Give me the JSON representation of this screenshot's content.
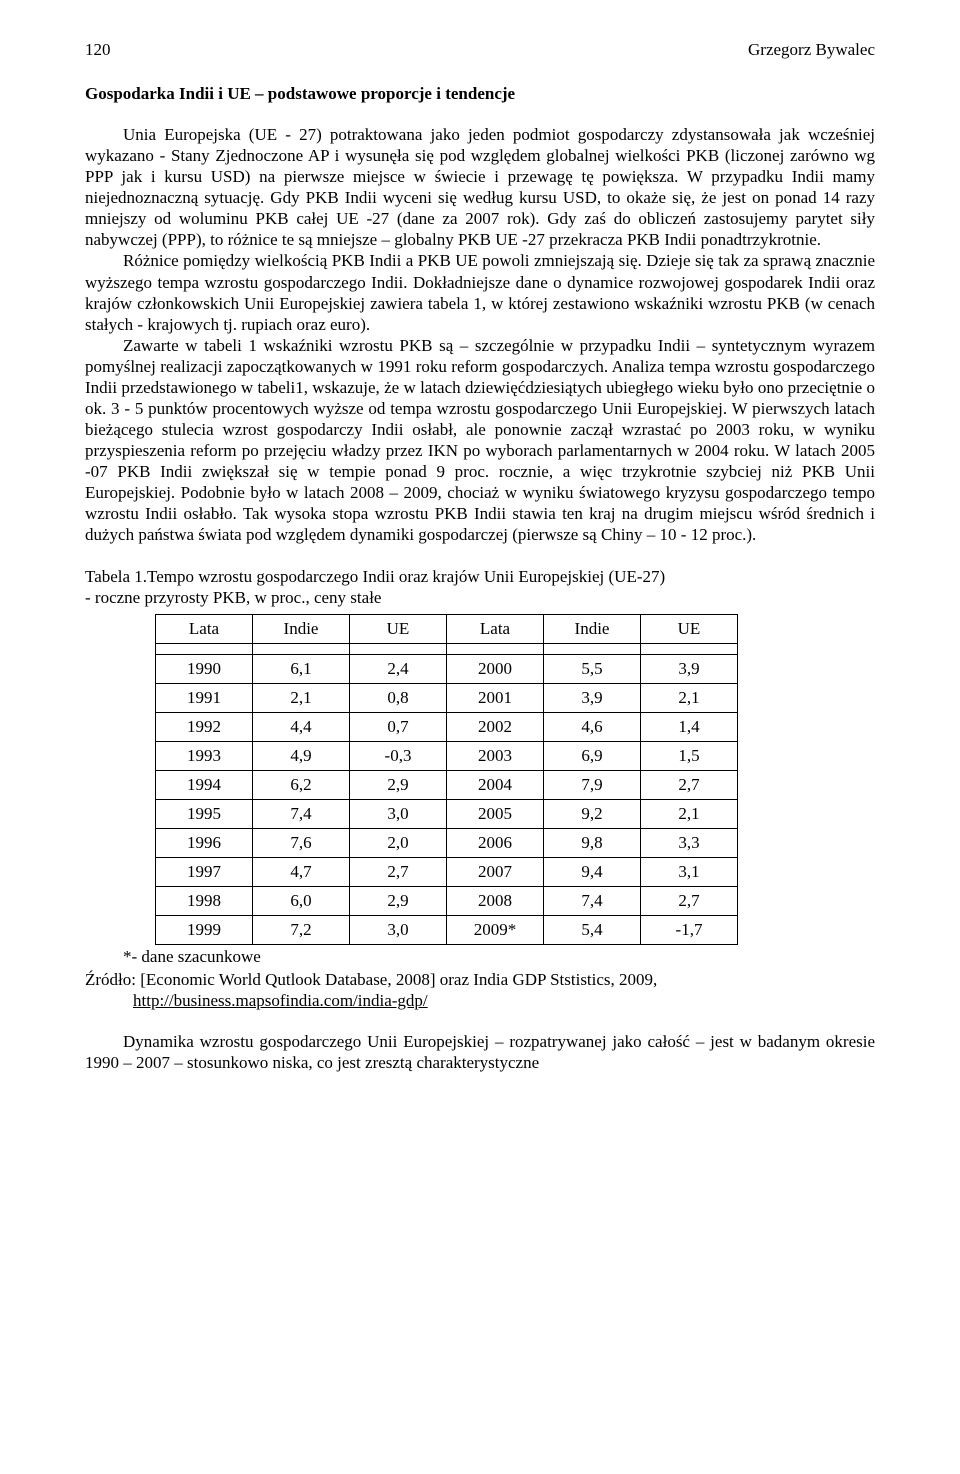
{
  "header": {
    "page_number": "120",
    "author": "Grzegorz Bywalec"
  },
  "section_title": "Gospodarka Indii i UE – podstawowe proporcje i tendencje",
  "paragraphs": {
    "p1": "Unia Europejska (UE - 27) potraktowana jako jeden podmiot gospodarczy zdystansowała jak wcześniej wykazano - Stany Zjednoczone AP i wysunęła się pod względem globalnej wielkości PKB (liczonej zarówno wg PPP jak i kursu USD) na pierwsze miejsce w świecie i przewagę tę powiększa. W przypadku Indii mamy niejednoznaczną sytuację. Gdy PKB Indii wyceni się według kursu USD, to okaże się, że jest on ponad 14 razy mniejszy od woluminu PKB całej UE -27 (dane za 2007 rok). Gdy zaś do obliczeń zastosujemy parytet siły nabywczej (PPP), to różnice te są mniejsze – globalny PKB UE -27 przekracza PKB Indii ponadtrzykrotnie.",
    "p2": "Różnice pomiędzy wielkością PKB Indii a PKB UE powoli zmniejszają się. Dzieje się tak za sprawą znacznie wyższego tempa wzrostu gospodarczego Indii. Dokładniejsze dane o dynamice rozwojowej gospodarek Indii oraz krajów członkowskich Unii Europejskiej zawiera tabela 1, w której zestawiono wskaźniki wzrostu PKB (w cenach stałych - krajowych tj. rupiach oraz euro).",
    "p3": "Zawarte w tabeli 1 wskaźniki wzrostu PKB są – szczególnie w przypadku Indii – syntetycznym wyrazem pomyślnej realizacji zapoczątkowanych w 1991 roku reform gospodarczych. Analiza tempa wzrostu gospodarczego Indii przedstawionego w tabeli1, wskazuje, że w latach dziewięćdziesiątych ubiegłego wieku było ono przeciętnie o ok. 3 - 5 punktów procentowych wyższe od tempa wzrostu gospodarczego Unii Europejskiej. W pierwszych latach bieżącego stulecia wzrost gospodarczy Indii osłabł, ale ponownie zaczął wzrastać po 2003 roku, w wyniku przyspieszenia reform po przejęciu władzy przez IKN po wyborach parlamentarnych w 2004 roku. W latach 2005 -07 PKB Indii zwiększał się w tempie ponad 9 proc. rocznie, a więc trzykrotnie szybciej niż PKB Unii Europejskiej. Podobnie było w latach 2008 – 2009, chociaż w wyniku światowego kryzysu gospodarczego tempo wzrostu Indii osłabło. Tak wysoka stopa wzrostu PKB Indii stawia ten kraj na drugim miejscu wśród średnich i dużych państwa świata pod względem dynamiki gospodarczej (pierwsze są Chiny – 10 - 12 proc.).",
    "p4": "Dynamika wzrostu gospodarczego Unii Europejskiej – rozpatrywanej jako całość – jest w badanym okresie 1990 – 2007 – stosunkowo niska, co jest zresztą charakterystyczne"
  },
  "table": {
    "caption_line1": "Tabela 1.Tempo wzrostu gospodarczego Indii oraz krajów Unii Europejskiej (UE-27)",
    "caption_line2": "- roczne przyrosty PKB, w proc., ceny stałe",
    "headers": [
      "Lata",
      "Indie",
      "UE",
      "Lata",
      "Indie",
      "UE"
    ],
    "rows": [
      [
        "1990",
        "6,1",
        "2,4",
        "2000",
        "5,5",
        "3,9"
      ],
      [
        "1991",
        "2,1",
        "0,8",
        "2001",
        "3,9",
        "2,1"
      ],
      [
        "1992",
        "4,4",
        "0,7",
        "2002",
        "4,6",
        "1,4"
      ],
      [
        "1993",
        "4,9",
        "-0,3",
        "2003",
        "6,9",
        "1,5"
      ],
      [
        "1994",
        "6,2",
        "2,9",
        "2004",
        "7,9",
        "2,7"
      ],
      [
        "1995",
        "7,4",
        "3,0",
        "2005",
        "9,2",
        "2,1"
      ],
      [
        "1996",
        "7,6",
        "2,0",
        "2006",
        "9,8",
        "3,3"
      ],
      [
        "1997",
        "4,7",
        "2,7",
        "2007",
        "9,4",
        "3,1"
      ],
      [
        "1998",
        "6,0",
        "2,9",
        "2008",
        "7,4",
        "2,7"
      ],
      [
        "1999",
        "7,2",
        "3,0",
        "2009*",
        "5,4",
        "-1,7"
      ]
    ],
    "footnote": "*- dane szacunkowe",
    "source_label": "Źródło: [Economic World Qutlook Database, 2008] oraz India GDP Ststistics, 2009,",
    "source_url": "http://business.mapsofindia.com/india-gdp/"
  }
}
